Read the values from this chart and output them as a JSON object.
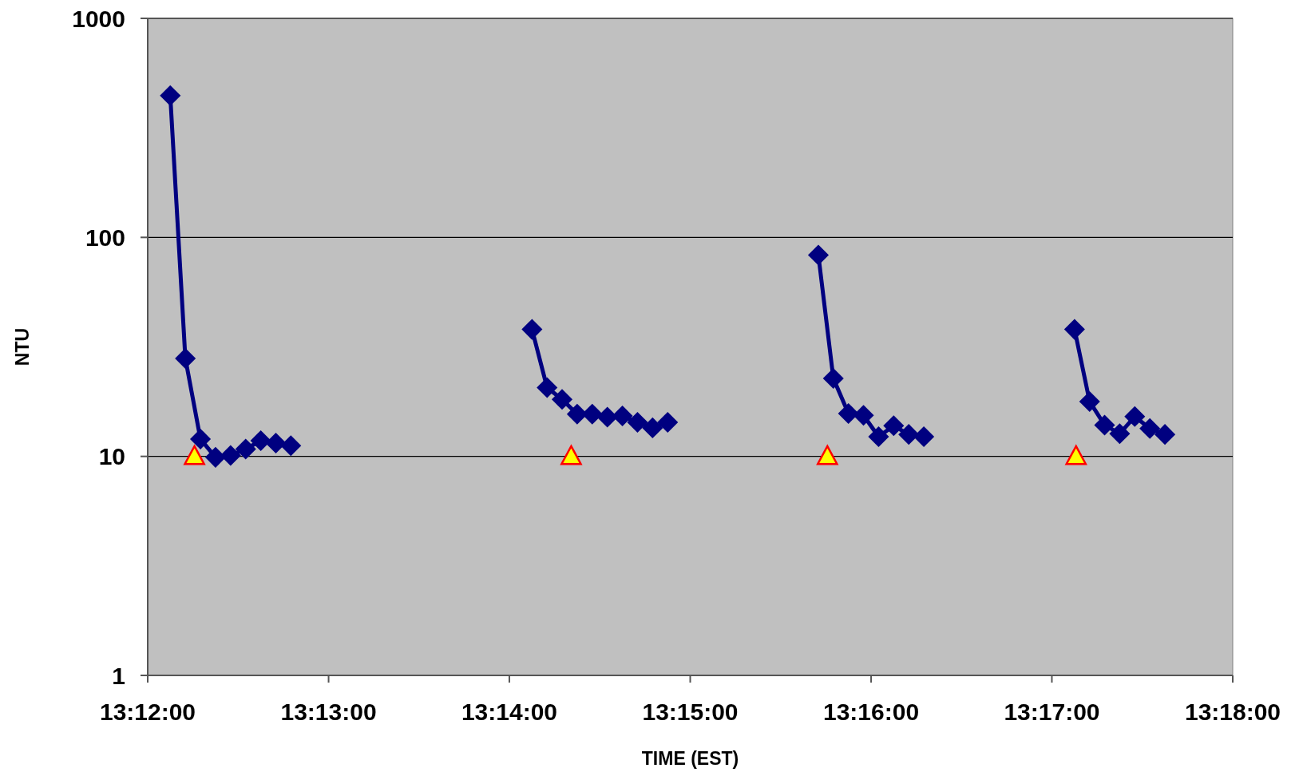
{
  "chart_data": {
    "type": "line",
    "xlabel": "TIME (EST)",
    "ylabel": "NTU",
    "log": "y",
    "grid": "y",
    "xlim": [
      13.2,
      13.3
    ],
    "xticks": [
      {
        "value": 13.2,
        "label": "13:12:00"
      },
      {
        "value": 13.21667,
        "label": "13:13:00"
      },
      {
        "value": 13.23333,
        "label": "13:14:00"
      },
      {
        "value": 13.25,
        "label": "13:15:00"
      },
      {
        "value": 13.26667,
        "label": "13:16:00"
      },
      {
        "value": 13.28333,
        "label": "13:17:00"
      },
      {
        "value": 13.3,
        "label": "13:18:00"
      }
    ],
    "ylim": [
      1,
      1000
    ],
    "yticks": [
      1,
      10,
      100,
      1000
    ],
    "series": [
      {
        "color": "#000080",
        "marker": "diamond",
        "x": [
          13.20208,
          13.20347,
          13.20486,
          13.20625,
          13.20764,
          13.20903,
          13.21042,
          13.21181,
          13.21319
        ],
        "values": [
          444,
          28,
          12,
          9.9,
          10.1,
          10.8,
          11.8,
          11.5,
          11.2
        ]
      },
      {
        "color": "#000080",
        "marker": "diamond",
        "x": [
          13.23542,
          13.23681,
          13.23819,
          13.23958,
          13.24097,
          13.24236,
          13.24375,
          13.24514,
          13.24653,
          13.24792
        ],
        "values": [
          38,
          20.6,
          18.2,
          15.6,
          15.6,
          15.1,
          15.3,
          14.3,
          13.5,
          14.3
        ]
      },
      {
        "color": "#000080",
        "marker": "diamond",
        "x": [
          13.26181,
          13.26319,
          13.26458,
          13.26597,
          13.26736,
          13.26875,
          13.27014,
          13.27153
        ],
        "values": [
          83,
          22.7,
          15.7,
          15.4,
          12.3,
          13.8,
          12.6,
          12.3
        ]
      },
      {
        "color": "#000080",
        "marker": "diamond",
        "x": [
          13.28542,
          13.28681,
          13.28819,
          13.28958,
          13.29097,
          13.29236,
          13.29375
        ],
        "values": [
          38,
          17.8,
          13.9,
          12.7,
          15.2,
          13.4,
          12.6
        ]
      },
      {
        "type": "scatter",
        "color": "#ffff00",
        "marker": "triangle",
        "x": [
          13.20431,
          13.23903,
          13.26264,
          13.28556
        ],
        "values": [
          10,
          10,
          10,
          10
        ]
      }
    ]
  }
}
